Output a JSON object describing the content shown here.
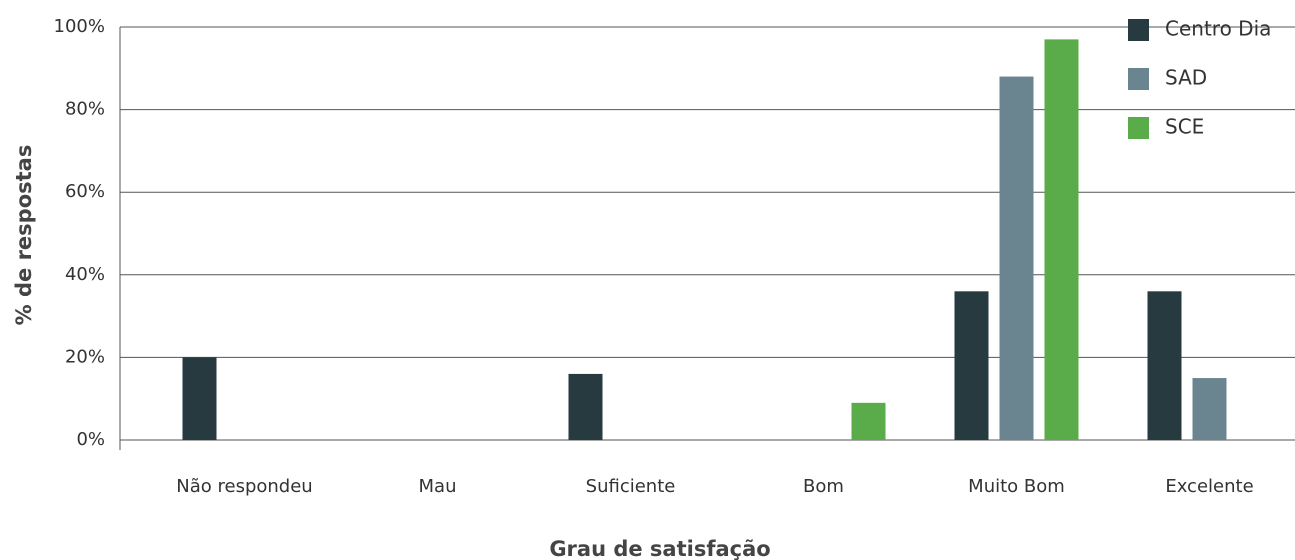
{
  "chart_data": {
    "type": "bar",
    "x_label": "Grau de satisfação",
    "y_label": "% de respostas",
    "categories": [
      "Não respondeu",
      "Mau",
      "Suficiente",
      "Bom",
      "Muito Bom",
      "Excelente"
    ],
    "series": [
      {
        "name": "Centro Dia",
        "color": "#263a40",
        "values": [
          20,
          0,
          16,
          0,
          36,
          36
        ]
      },
      {
        "name": "SAD",
        "color": "#6b8590",
        "values": [
          0,
          0,
          0,
          0,
          88,
          15
        ]
      },
      {
        "name": "SCE",
        "color": "#5aab4a",
        "values": [
          0,
          0,
          0,
          9,
          97,
          0
        ]
      }
    ],
    "ylim": [
      0,
      100
    ],
    "yticks": [
      {
        "value": 0,
        "label": "0%"
      },
      {
        "value": 20,
        "label": "20%"
      },
      {
        "value": 40,
        "label": "40%"
      },
      {
        "value": 60,
        "label": "60%"
      },
      {
        "value": 80,
        "label": "80%"
      },
      {
        "value": 100,
        "label": "100%"
      }
    ],
    "grid": true,
    "legend": "top-right"
  }
}
